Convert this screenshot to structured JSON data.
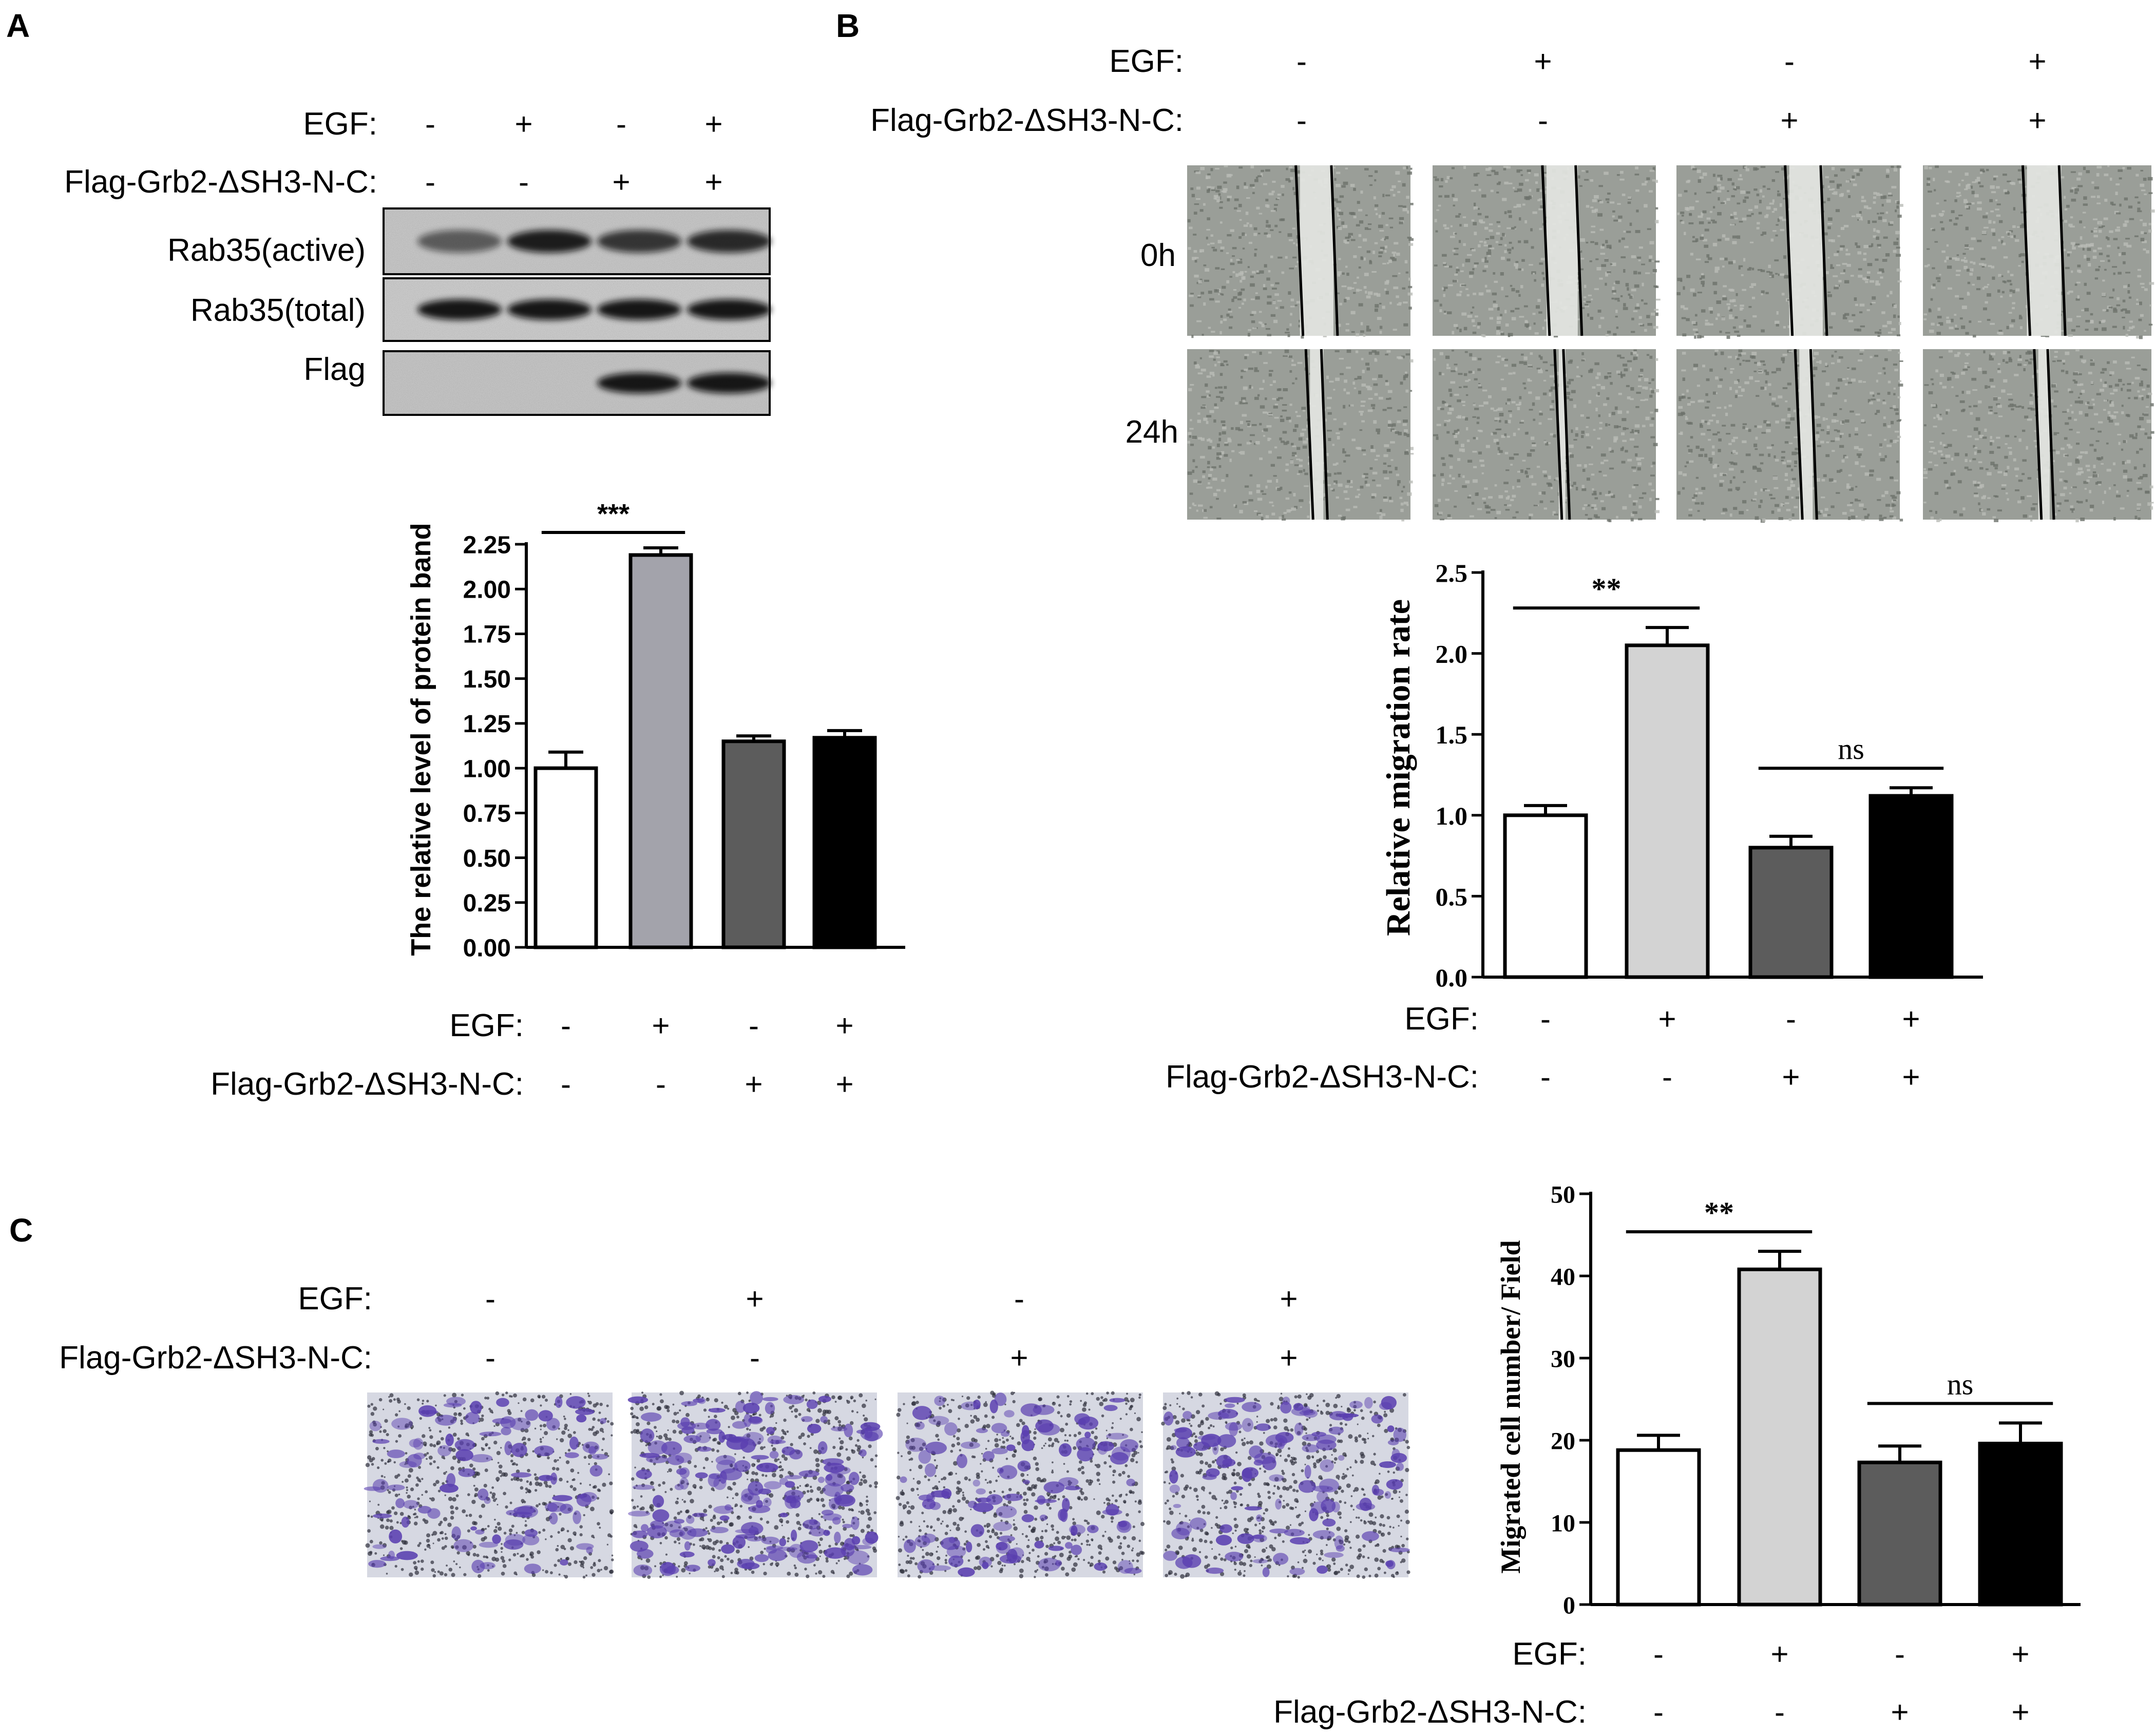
{
  "figure": {
    "panels": {
      "A": {
        "letter": "A",
        "treatment_rows": [
          {
            "label": "EGF:",
            "signs": [
              "-",
              "+",
              "-",
              "+"
            ]
          },
          {
            "label": "Flag-Grb2-ΔSH3-N-C:",
            "signs": [
              "-",
              "-",
              "+",
              "+"
            ]
          }
        ],
        "blot_labels": [
          "Rab35(active)",
          "Rab35(total)",
          "Flag"
        ],
        "blot_band_present": [
          [
            true,
            true,
            true,
            true
          ],
          [
            true,
            true,
            true,
            true
          ],
          [
            false,
            false,
            true,
            true
          ]
        ],
        "blot_band_intensity": [
          [
            0.45,
            0.95,
            0.75,
            0.85
          ],
          [
            1.0,
            1.0,
            1.0,
            1.0
          ],
          [
            0,
            0,
            1.0,
            1.0
          ]
        ],
        "blot_background": [
          "#c4c4c4",
          "#c9c9c9",
          "#c2c2c2"
        ]
      },
      "B": {
        "letter": "B",
        "treatment_rows": [
          {
            "label": "EGF:",
            "signs": [
              "-",
              "+",
              "-",
              "+"
            ]
          },
          {
            "label": "Flag-Grb2-ΔSH3-N-C:",
            "signs": [
              "-",
              "-",
              "+",
              "+"
            ]
          }
        ],
        "time_labels": [
          "0h",
          "24h"
        ],
        "wound_gap_fraction": [
          [
            0.15,
            0.14,
            0.15,
            0.15
          ],
          [
            0.06,
            0.03,
            0.06,
            0.05
          ]
        ]
      },
      "C": {
        "letter": "C",
        "treatment_rows": [
          {
            "label": "EGF:",
            "signs": [
              "-",
              "+",
              "-",
              "+"
            ]
          },
          {
            "label": "Flag-Grb2-ΔSH3-N-C:",
            "signs": [
              "-",
              "-",
              "+",
              "+"
            ]
          }
        ],
        "transwell_stain_density": [
          0.35,
          0.85,
          0.45,
          0.5
        ],
        "stain_color": "#5a3fb0"
      }
    },
    "bar_colors": [
      "#ffffff",
      "#a3a3ab",
      "#5c5c5c",
      "#000000"
    ],
    "bar_colors_B": [
      "#ffffff",
      "#d3d3d3",
      "#5c5c5c",
      "#000000"
    ]
  },
  "chart_data": [
    {
      "type": "bar",
      "panel": "A",
      "title": "",
      "xlabel": "",
      "ylabel": "The  relative level of protein band",
      "ylim": [
        0,
        2.25
      ],
      "yticks": [
        "0.00",
        "0.25",
        "0.50",
        "0.75",
        "1.00",
        "1.25",
        "1.50",
        "1.75",
        "2.00",
        "2.25"
      ],
      "categories_rows": [
        {
          "label": "EGF:",
          "signs": [
            "-",
            "+",
            "-",
            "+"
          ]
        },
        {
          "label": "Flag-Grb2-ΔSH3-N-C:",
          "signs": [
            "-",
            "-",
            "+",
            "+"
          ]
        }
      ],
      "values": [
        1.0,
        2.19,
        1.15,
        1.17
      ],
      "errors": [
        0.09,
        0.04,
        0.03,
        0.04
      ],
      "significance": [
        {
          "from": 0,
          "to": 1,
          "label": "***"
        }
      ]
    },
    {
      "type": "bar",
      "panel": "B",
      "title": "",
      "xlabel": "",
      "ylabel": "Relative migration rate",
      "ylim": [
        0,
        2.5
      ],
      "yticks": [
        "0.0",
        "0.5",
        "1.0",
        "1.5",
        "2.0",
        "2.5"
      ],
      "categories_rows": [
        {
          "label": "EGF:",
          "signs": [
            "-",
            "+",
            "-",
            "+"
          ]
        },
        {
          "label": "Flag-Grb2-ΔSH3-N-C:",
          "signs": [
            "-",
            "-",
            "+",
            "+"
          ]
        }
      ],
      "values": [
        1.0,
        2.05,
        0.8,
        1.12
      ],
      "errors": [
        0.06,
        0.11,
        0.07,
        0.05
      ],
      "significance": [
        {
          "from": 0,
          "to": 1,
          "label": "**"
        },
        {
          "from": 2,
          "to": 3,
          "label": "ns"
        }
      ]
    },
    {
      "type": "bar",
      "panel": "C",
      "title": "",
      "xlabel": "",
      "ylabel": "Migrated cell number/ Field",
      "ylim": [
        0,
        50
      ],
      "yticks": [
        "0",
        "10",
        "20",
        "30",
        "40",
        "50"
      ],
      "categories_rows": [
        {
          "label": "EGF:",
          "signs": [
            "-",
            "+",
            "-",
            "+"
          ]
        },
        {
          "label": "Flag-Grb2-ΔSH3-N-C:",
          "signs": [
            "-",
            "-",
            "+",
            "+"
          ]
        }
      ],
      "values": [
        18.8,
        40.8,
        17.3,
        19.6
      ],
      "errors": [
        1.8,
        2.2,
        2.0,
        2.5
      ],
      "significance": [
        {
          "from": 0,
          "to": 1,
          "label": "**"
        },
        {
          "from": 2,
          "to": 3,
          "label": "ns"
        }
      ]
    }
  ]
}
